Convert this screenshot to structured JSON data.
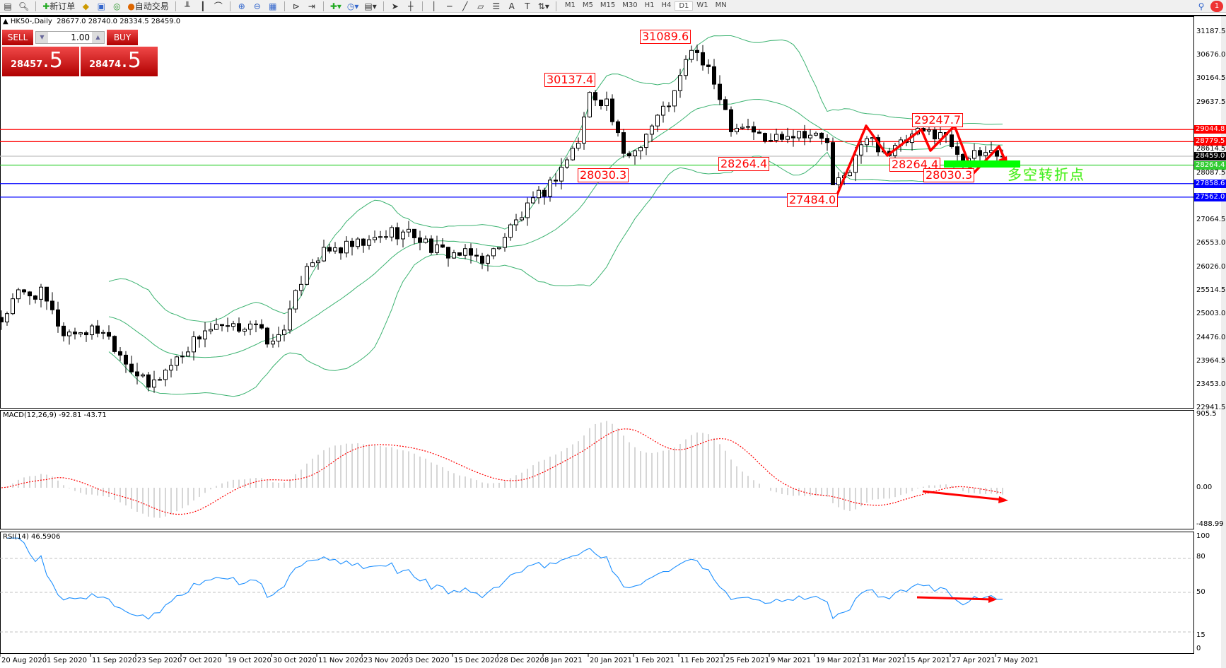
{
  "toolbar": {
    "new_order": "新订单",
    "auto_trading": "自动交易",
    "timeframes": [
      "M1",
      "M5",
      "M15",
      "M30",
      "H1",
      "H4",
      "D1",
      "W1",
      "MN"
    ],
    "active_timeframe": "D1",
    "notification_count": "1"
  },
  "chart_header": {
    "symbol": "HK50-,Daily",
    "open": "28677.0",
    "high": "28740.0",
    "low": "28334.5",
    "close": "28459.0"
  },
  "trade_panel": {
    "sell_label": "SELL",
    "buy_label": "BUY",
    "lot": "1.00",
    "sell_big": "28457",
    "sell_small": ".5",
    "buy_big": "28474",
    "buy_small": ".5"
  },
  "price_axis": [
    "31187.5",
    "30676.0",
    "30164.5",
    "29637.5",
    "28614.5",
    "28087.5",
    "27064.5",
    "26553.0",
    "26026.0",
    "25514.5",
    "25003.0",
    "24476.0",
    "23964.5",
    "23453.0",
    "22941.5"
  ],
  "price_tags": [
    {
      "value": "29044.8",
      "color": "#ff0000"
    },
    {
      "value": "28779.5",
      "color": "#ff0000"
    },
    {
      "value": "28459.0",
      "color": "#000000"
    },
    {
      "value": "28264.4",
      "color": "#32cd32"
    },
    {
      "value": "27858.6",
      "color": "#0000ff"
    },
    {
      "value": "27562.0",
      "color": "#0000ff"
    }
  ],
  "annotations": [
    "31089.6",
    "30137.4",
    "28030.3",
    "28264.4",
    "27484.0",
    "29247.7",
    "28264.4",
    "28030.3"
  ],
  "turning_point_text": "多空转折点",
  "macd": {
    "label": "MACD(12,26,9) -92.81 -43.71",
    "axis": [
      "905.5",
      "0.00",
      "-488.99"
    ]
  },
  "rsi": {
    "label": "RSI(14) 46.5906",
    "axis": [
      "100",
      "80",
      "50",
      "15",
      "0"
    ]
  },
  "dates": [
    "20 Aug 2020",
    "1 Sep 2020",
    "11 Sep 2020",
    "23 Sep 2020",
    "7 Oct 2020",
    "19 Oct 2020",
    "30 Oct 2020",
    "11 Nov 2020",
    "23 Nov 2020",
    "3 Dec 2020",
    "15 Dec 2020",
    "28 Dec 2020",
    "8 Jan 2021",
    "20 Jan 2021",
    "1 Feb 2021",
    "11 Feb 2021",
    "25 Feb 2021",
    "9 Mar 2021",
    "19 Mar 2021",
    "31 Mar 2021",
    "15 Apr 2021",
    "27 Apr 2021",
    "7 May 2021"
  ],
  "chart_data": {
    "type": "candlestick",
    "title": "HK50-,Daily",
    "ylim": [
      22941.5,
      31187.5
    ],
    "close_waypoints_by_bar": [
      [
        0,
        24860
      ],
      [
        3,
        25440
      ],
      [
        7,
        25440
      ],
      [
        11,
        24580
      ],
      [
        18,
        24660
      ],
      [
        22,
        23980
      ],
      [
        26,
        23380
      ],
      [
        32,
        24150
      ],
      [
        36,
        24660
      ],
      [
        41,
        24660
      ],
      [
        44,
        24810
      ],
      [
        48,
        24320
      ],
      [
        51,
        25000
      ],
      [
        54,
        26130
      ],
      [
        58,
        26380
      ],
      [
        65,
        26550
      ],
      [
        69,
        26810
      ],
      [
        73,
        26740
      ],
      [
        77,
        26380
      ],
      [
        86,
        26210
      ],
      [
        90,
        26890
      ],
      [
        97,
        27840
      ],
      [
        102,
        28780
      ],
      [
        104,
        29820
      ],
      [
        107,
        29660
      ],
      [
        110,
        28440
      ],
      [
        112,
        28600
      ],
      [
        115,
        29140
      ],
      [
        119,
        29820
      ],
      [
        122,
        30850
      ],
      [
        124,
        30500
      ],
      [
        127,
        29820
      ],
      [
        129,
        29140
      ],
      [
        132,
        29140
      ],
      [
        135,
        28780
      ],
      [
        138,
        28950
      ],
      [
        142,
        29000
      ],
      [
        146,
        28780
      ],
      [
        147,
        27760
      ],
      [
        149,
        28000
      ],
      [
        153,
        28860
      ],
      [
        157,
        28530
      ],
      [
        162,
        28950
      ],
      [
        166,
        29000
      ],
      [
        170,
        28440
      ],
      [
        172,
        28440
      ],
      [
        175,
        28600
      ],
      [
        177,
        28459
      ]
    ],
    "horizontal_lines": [
      29044.8,
      28779.5,
      28459.0,
      28264.4,
      27858.6,
      27562.0
    ],
    "indicators": [
      "Bollinger Bands(20,2)",
      "MACD(12,26,9)",
      "RSI(14)"
    ],
    "rsi_levels": [
      80,
      50,
      15
    ],
    "colors": {
      "bands": "#3cb371",
      "macd_hist": "#c0c0c0",
      "macd_signal": "#ff0000",
      "rsi": "#1e90ff",
      "arrows": "#ff0000",
      "turning_zone": "#00ff00"
    }
  }
}
